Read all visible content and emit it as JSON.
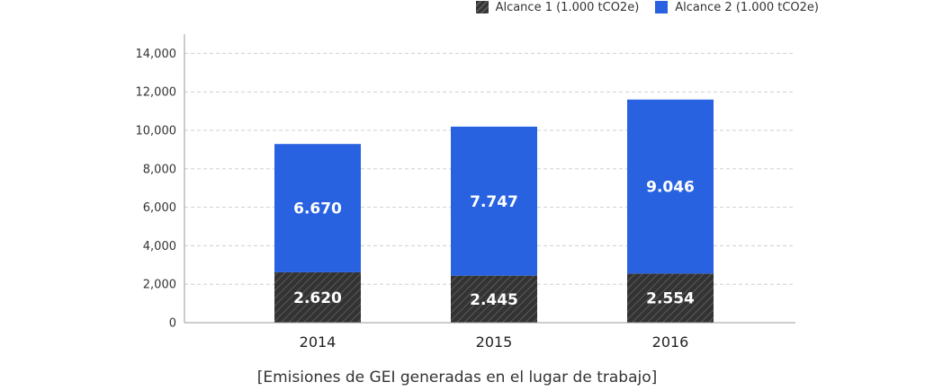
{
  "chart_data": {
    "type": "bar",
    "stacked": true,
    "categories": [
      "2014",
      "2015",
      "2016"
    ],
    "series": [
      {
        "name": "Alcance 1 (1.000 tCO2e)",
        "values": [
          2620,
          2445,
          2554
        ],
        "labels": [
          "2.620",
          "2.445",
          "2.554"
        ],
        "color": "#333333",
        "pattern": "diagonal-hatch"
      },
      {
        "name": "Alcance 2 (1.000 tCO2e)",
        "values": [
          6670,
          7747,
          9046
        ],
        "labels": [
          "6.670",
          "7.747",
          "9.046"
        ],
        "color": "#2962e0"
      }
    ],
    "ylim": [
      0,
      15000
    ],
    "yticks": [
      0,
      2000,
      4000,
      6000,
      8000,
      10000,
      12000,
      14000
    ],
    "ytick_labels": [
      "0",
      "2,000",
      "4,000",
      "6,000",
      "8,000",
      "10,000",
      "12,000",
      "14,000"
    ],
    "grid": true,
    "legend_position": "top-right",
    "caption": "[Emisiones de GEI generadas en el lugar de trabajo]"
  }
}
